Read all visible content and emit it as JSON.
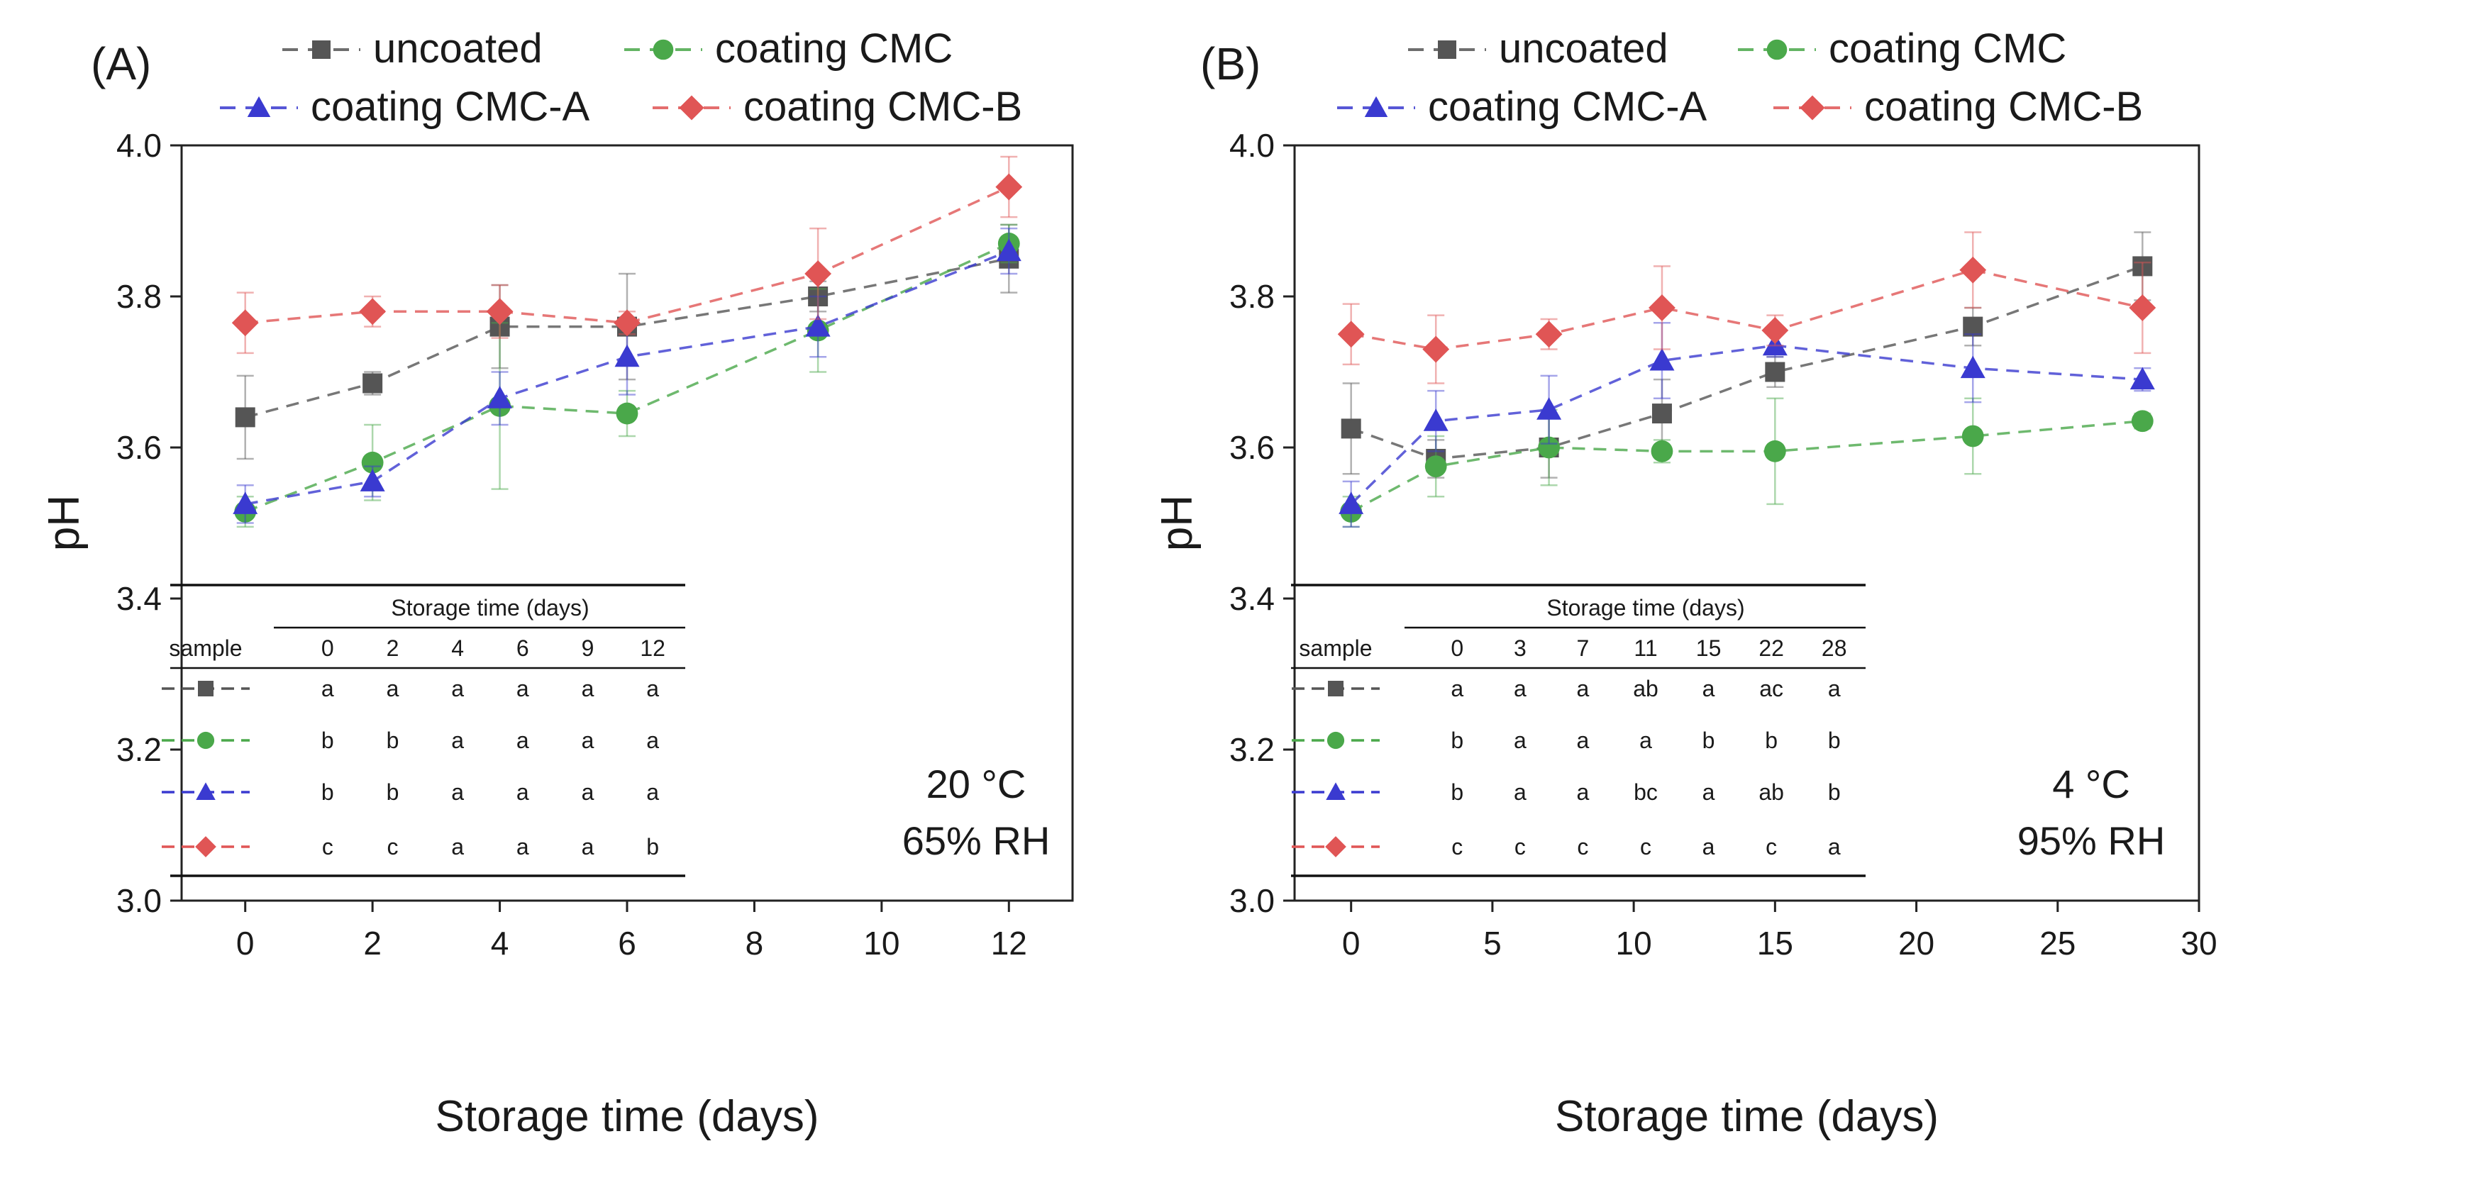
{
  "colors": {
    "uncoated": "#555555",
    "coating_cmc": "#4aa84a",
    "coating_cmc_a": "#3a3ad0",
    "coating_cmc_b": "#e05555"
  },
  "legend": {
    "uncoated": "uncoated",
    "coating_cmc": "coating CMC",
    "coating_cmc_a": "coating CMC-A",
    "coating_cmc_b": "coating CMC-B"
  },
  "chart_data": [
    {
      "type": "line",
      "panel": "(A)",
      "xlabel": "Storage time (days)",
      "ylabel": "pH",
      "xlim": [
        -1,
        13
      ],
      "ylim": [
        3.0,
        4.0
      ],
      "xticks": [
        0,
        2,
        4,
        6,
        8,
        10,
        12
      ],
      "yticks": [
        "3.0",
        "3.2",
        "3.4",
        "3.6",
        "3.8",
        "4.0"
      ],
      "condition": [
        "20 °C",
        "65% RH"
      ],
      "series": [
        {
          "key": "uncoated",
          "name": "uncoated",
          "marker": "square",
          "x": [
            0,
            2,
            4,
            6,
            9,
            12
          ],
          "y": [
            3.64,
            3.685,
            3.76,
            3.76,
            3.8,
            3.85
          ],
          "err": [
            0.055,
            0.015,
            0.055,
            0.07,
            0.02,
            0.045
          ]
        },
        {
          "key": "coating_cmc",
          "name": "coating CMC",
          "marker": "circle",
          "x": [
            0,
            2,
            4,
            6,
            9,
            12
          ],
          "y": [
            3.515,
            3.58,
            3.655,
            3.645,
            3.755,
            3.87
          ],
          "err": [
            0.02,
            0.05,
            0.11,
            0.03,
            0.055,
            0.025
          ]
        },
        {
          "key": "coating_cmc_a",
          "name": "coating CMC-A",
          "marker": "triangle",
          "x": [
            0,
            2,
            4,
            6,
            9,
            12
          ],
          "y": [
            3.525,
            3.555,
            3.665,
            3.72,
            3.76,
            3.86
          ],
          "err": [
            0.025,
            0.02,
            0.035,
            0.05,
            0.04,
            0.03
          ]
        },
        {
          "key": "coating_cmc_b",
          "name": "coating CMC-B",
          "marker": "diamond",
          "x": [
            0,
            2,
            4,
            6,
            9,
            12
          ],
          "y": [
            3.765,
            3.78,
            3.78,
            3.765,
            3.83,
            3.945
          ],
          "err": [
            0.04,
            0.02,
            0.035,
            0.015,
            0.06,
            0.04
          ]
        }
      ],
      "table": {
        "header": "Storage time (days)",
        "sample_label": "sample",
        "days": [
          "0",
          "2",
          "4",
          "6",
          "9",
          "12"
        ],
        "rows": [
          {
            "key": "uncoated",
            "marker": "square",
            "values": [
              "a",
              "a",
              "a",
              "a",
              "a",
              "a"
            ]
          },
          {
            "key": "coating_cmc",
            "marker": "circle",
            "values": [
              "b",
              "b",
              "a",
              "a",
              "a",
              "a"
            ]
          },
          {
            "key": "coating_cmc_a",
            "marker": "triangle",
            "values": [
              "b",
              "b",
              "a",
              "a",
              "a",
              "a"
            ]
          },
          {
            "key": "coating_cmc_b",
            "marker": "diamond",
            "values": [
              "c",
              "c",
              "a",
              "a",
              "a",
              "b"
            ]
          }
        ]
      }
    },
    {
      "type": "line",
      "panel": "(B)",
      "xlabel": "Storage time (days)",
      "ylabel": "pH",
      "xlim": [
        -2,
        30
      ],
      "ylim": [
        3.0,
        4.0
      ],
      "xticks": [
        0,
        5,
        10,
        15,
        20,
        25,
        30
      ],
      "yticks": [
        "3.0",
        "3.2",
        "3.4",
        "3.6",
        "3.8",
        "4.0"
      ],
      "condition": [
        "4 °C",
        "95% RH"
      ],
      "series": [
        {
          "key": "uncoated",
          "name": "uncoated",
          "marker": "square",
          "x": [
            0,
            3,
            7,
            11,
            15,
            22,
            28
          ],
          "y": [
            3.625,
            3.585,
            3.6,
            3.645,
            3.7,
            3.76,
            3.84
          ],
          "err": [
            0.06,
            0.025,
            0.04,
            0.045,
            0.02,
            0.025,
            0.045
          ]
        },
        {
          "key": "coating_cmc",
          "name": "coating CMC",
          "marker": "circle",
          "x": [
            0,
            3,
            7,
            11,
            15,
            22,
            28
          ],
          "y": [
            3.515,
            3.575,
            3.6,
            3.595,
            3.595,
            3.615,
            3.635
          ],
          "err": [
            0.02,
            0.04,
            0.05,
            0.015,
            0.07,
            0.05,
            0.01
          ]
        },
        {
          "key": "coating_cmc_a",
          "name": "coating CMC-A",
          "marker": "triangle",
          "x": [
            0,
            3,
            7,
            11,
            15,
            22,
            28
          ],
          "y": [
            3.525,
            3.635,
            3.65,
            3.715,
            3.735,
            3.705,
            3.69
          ],
          "err": [
            0.03,
            0.04,
            0.045,
            0.05,
            0.015,
            0.045,
            0.015
          ]
        },
        {
          "key": "coating_cmc_b",
          "name": "coating CMC-B",
          "marker": "diamond",
          "x": [
            0,
            3,
            7,
            11,
            15,
            22,
            28
          ],
          "y": [
            3.75,
            3.73,
            3.75,
            3.785,
            3.755,
            3.835,
            3.785
          ],
          "err": [
            0.04,
            0.045,
            0.02,
            0.055,
            0.02,
            0.05,
            0.06
          ]
        }
      ],
      "table": {
        "header": "Storage time (days)",
        "sample_label": "sample",
        "days": [
          "0",
          "3",
          "7",
          "11",
          "15",
          "22",
          "28"
        ],
        "rows": [
          {
            "key": "uncoated",
            "marker": "square",
            "values": [
              "a",
              "a",
              "a",
              "ab",
              "a",
              "ac",
              "a"
            ]
          },
          {
            "key": "coating_cmc",
            "marker": "circle",
            "values": [
              "b",
              "a",
              "a",
              "a",
              "b",
              "b",
              "b"
            ]
          },
          {
            "key": "coating_cmc_a",
            "marker": "triangle",
            "values": [
              "b",
              "a",
              "a",
              "bc",
              "a",
              "ab",
              "b"
            ]
          },
          {
            "key": "coating_cmc_b",
            "marker": "diamond",
            "values": [
              "c",
              "c",
              "c",
              "c",
              "a",
              "c",
              "a"
            ]
          }
        ]
      }
    }
  ]
}
